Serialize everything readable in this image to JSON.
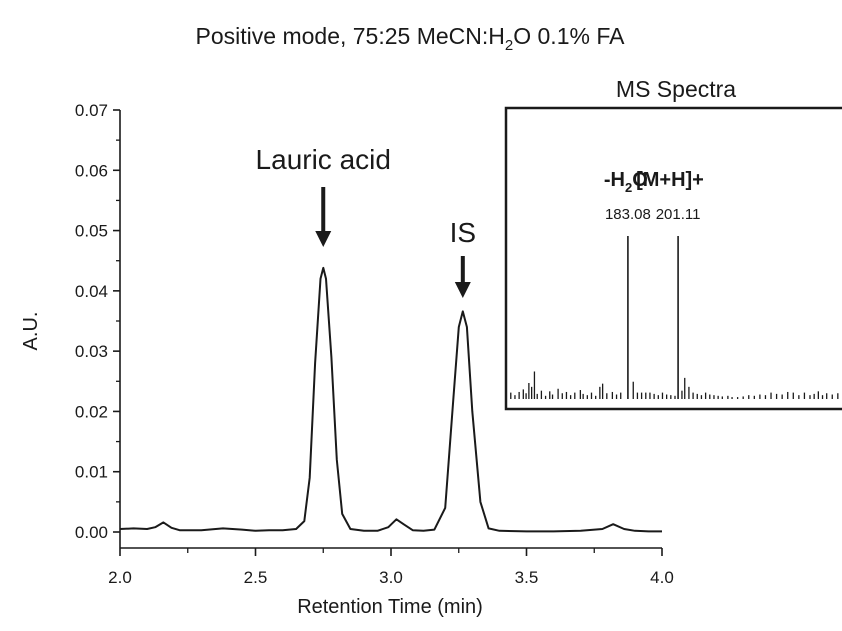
{
  "chart_data": {
    "type": "line",
    "title": {
      "prefix": "Positive mode, 75:25 MeCN:H",
      "sub": "2",
      "suffix": "O 0.1% FA"
    },
    "xlabel": "Retention Time (min)",
    "ylabel": "A.U.",
    "xlim": [
      2.0,
      4.0
    ],
    "ylim": [
      0.0,
      0.07
    ],
    "x_ticks": [
      "2.0",
      "2.5",
      "3.0",
      "3.5",
      "4.0"
    ],
    "y_ticks": [
      "0.00",
      "0.01",
      "0.02",
      "0.03",
      "0.04",
      "0.05",
      "0.06",
      "0.07"
    ],
    "grid": false,
    "series": [
      {
        "x": [
          2.0,
          2.05,
          2.1,
          2.13,
          2.16,
          2.19,
          2.22,
          2.3,
          2.38,
          2.45,
          2.5,
          2.55,
          2.6,
          2.65,
          2.68,
          2.7,
          2.72,
          2.74,
          2.75,
          2.76,
          2.78,
          2.8,
          2.82,
          2.85,
          2.9,
          2.95,
          2.99,
          3.02,
          3.05,
          3.08,
          3.12,
          3.16,
          3.2,
          3.23,
          3.25,
          3.265,
          3.28,
          3.3,
          3.33,
          3.36,
          3.4,
          3.5,
          3.6,
          3.7,
          3.78,
          3.82,
          3.86,
          3.9,
          3.95,
          4.0
        ],
        "values": [
          0.0005,
          0.0006,
          0.0005,
          0.0008,
          0.0016,
          0.0007,
          0.0003,
          0.0003,
          0.0006,
          0.0004,
          0.0002,
          0.0003,
          0.0003,
          0.0005,
          0.0018,
          0.009,
          0.028,
          0.042,
          0.0438,
          0.042,
          0.029,
          0.012,
          0.003,
          0.0005,
          0.0002,
          0.0002,
          0.0008,
          0.0021,
          0.0012,
          0.0003,
          0.0002,
          0.0004,
          0.004,
          0.022,
          0.034,
          0.0366,
          0.034,
          0.02,
          0.005,
          0.0006,
          0.0002,
          0.0001,
          0.0001,
          0.0002,
          0.0005,
          0.0013,
          0.0005,
          0.0002,
          0.0001,
          0.0001
        ]
      }
    ],
    "annotations": [
      {
        "text": "Lauric acid",
        "x": 2.75
      },
      {
        "text": "IS",
        "x": 3.265
      }
    ],
    "inset": {
      "title": "MS Spectra",
      "type": "bar",
      "xlim": [
        140,
        260
      ],
      "peaks": [
        {
          "x": 183.08,
          "label": "183.08",
          "annotation": {
            "prefix": "-H",
            "sub": "2",
            "suffix": "O"
          }
        },
        {
          "x": 201.11,
          "label": "201.11",
          "annotation": {
            "prefix": "[M+H]+",
            "sub": "",
            "suffix": ""
          }
        }
      ],
      "noise": [
        {
          "x": 141,
          "y": 0.1
        },
        {
          "x": 142.5,
          "y": 0.06
        },
        {
          "x": 144,
          "y": 0.11
        },
        {
          "x": 145.5,
          "y": 0.15
        },
        {
          "x": 146.5,
          "y": 0.09
        },
        {
          "x": 147.5,
          "y": 0.25
        },
        {
          "x": 148.5,
          "y": 0.19
        },
        {
          "x": 149.5,
          "y": 0.43
        },
        {
          "x": 150.5,
          "y": 0.08
        },
        {
          "x": 152,
          "y": 0.13
        },
        {
          "x": 153.5,
          "y": 0.05
        },
        {
          "x": 155,
          "y": 0.12
        },
        {
          "x": 156,
          "y": 0.07
        },
        {
          "x": 158,
          "y": 0.16
        },
        {
          "x": 159.5,
          "y": 0.09
        },
        {
          "x": 161,
          "y": 0.11
        },
        {
          "x": 162.5,
          "y": 0.06
        },
        {
          "x": 164,
          "y": 0.1
        },
        {
          "x": 166,
          "y": 0.14
        },
        {
          "x": 167,
          "y": 0.08
        },
        {
          "x": 168.5,
          "y": 0.06
        },
        {
          "x": 170,
          "y": 0.1
        },
        {
          "x": 171.5,
          "y": 0.05
        },
        {
          "x": 173,
          "y": 0.19
        },
        {
          "x": 174,
          "y": 0.24
        },
        {
          "x": 175.5,
          "y": 0.09
        },
        {
          "x": 177.5,
          "y": 0.11
        },
        {
          "x": 179,
          "y": 0.07
        },
        {
          "x": 180.5,
          "y": 0.1
        },
        {
          "x": 185,
          "y": 0.27
        },
        {
          "x": 186.5,
          "y": 0.1
        },
        {
          "x": 188,
          "y": 0.1
        },
        {
          "x": 189.5,
          "y": 0.1
        },
        {
          "x": 191,
          "y": 0.1
        },
        {
          "x": 192.5,
          "y": 0.08
        },
        {
          "x": 194,
          "y": 0.06
        },
        {
          "x": 195.5,
          "y": 0.1
        },
        {
          "x": 197,
          "y": 0.07
        },
        {
          "x": 198.5,
          "y": 0.06
        },
        {
          "x": 200,
          "y": 0.05
        },
        {
          "x": 202.5,
          "y": 0.13
        },
        {
          "x": 203.5,
          "y": 0.33
        },
        {
          "x": 205,
          "y": 0.19
        },
        {
          "x": 206.5,
          "y": 0.1
        },
        {
          "x": 208,
          "y": 0.08
        },
        {
          "x": 209.5,
          "y": 0.06
        },
        {
          "x": 211,
          "y": 0.1
        },
        {
          "x": 212.5,
          "y": 0.07
        },
        {
          "x": 214,
          "y": 0.06
        },
        {
          "x": 215.5,
          "y": 0.05
        },
        {
          "x": 217,
          "y": 0.04
        },
        {
          "x": 219,
          "y": 0.05
        },
        {
          "x": 220.5,
          "y": 0.03
        },
        {
          "x": 222.5,
          "y": 0.03
        },
        {
          "x": 224.5,
          "y": 0.04
        },
        {
          "x": 226.5,
          "y": 0.06
        },
        {
          "x": 228.5,
          "y": 0.05
        },
        {
          "x": 230.5,
          "y": 0.07
        },
        {
          "x": 232.5,
          "y": 0.06
        },
        {
          "x": 234.5,
          "y": 0.1
        },
        {
          "x": 236.5,
          "y": 0.08
        },
        {
          "x": 238.5,
          "y": 0.07
        },
        {
          "x": 240.5,
          "y": 0.11
        },
        {
          "x": 242.5,
          "y": 0.1
        },
        {
          "x": 244.5,
          "y": 0.06
        },
        {
          "x": 246.5,
          "y": 0.1
        },
        {
          "x": 248.5,
          "y": 0.06
        },
        {
          "x": 250,
          "y": 0.08
        },
        {
          "x": 251.5,
          "y": 0.12
        },
        {
          "x": 253,
          "y": 0.06
        },
        {
          "x": 254.5,
          "y": 0.09
        },
        {
          "x": 256.5,
          "y": 0.07
        },
        {
          "x": 258.5,
          "y": 0.09
        }
      ]
    }
  }
}
